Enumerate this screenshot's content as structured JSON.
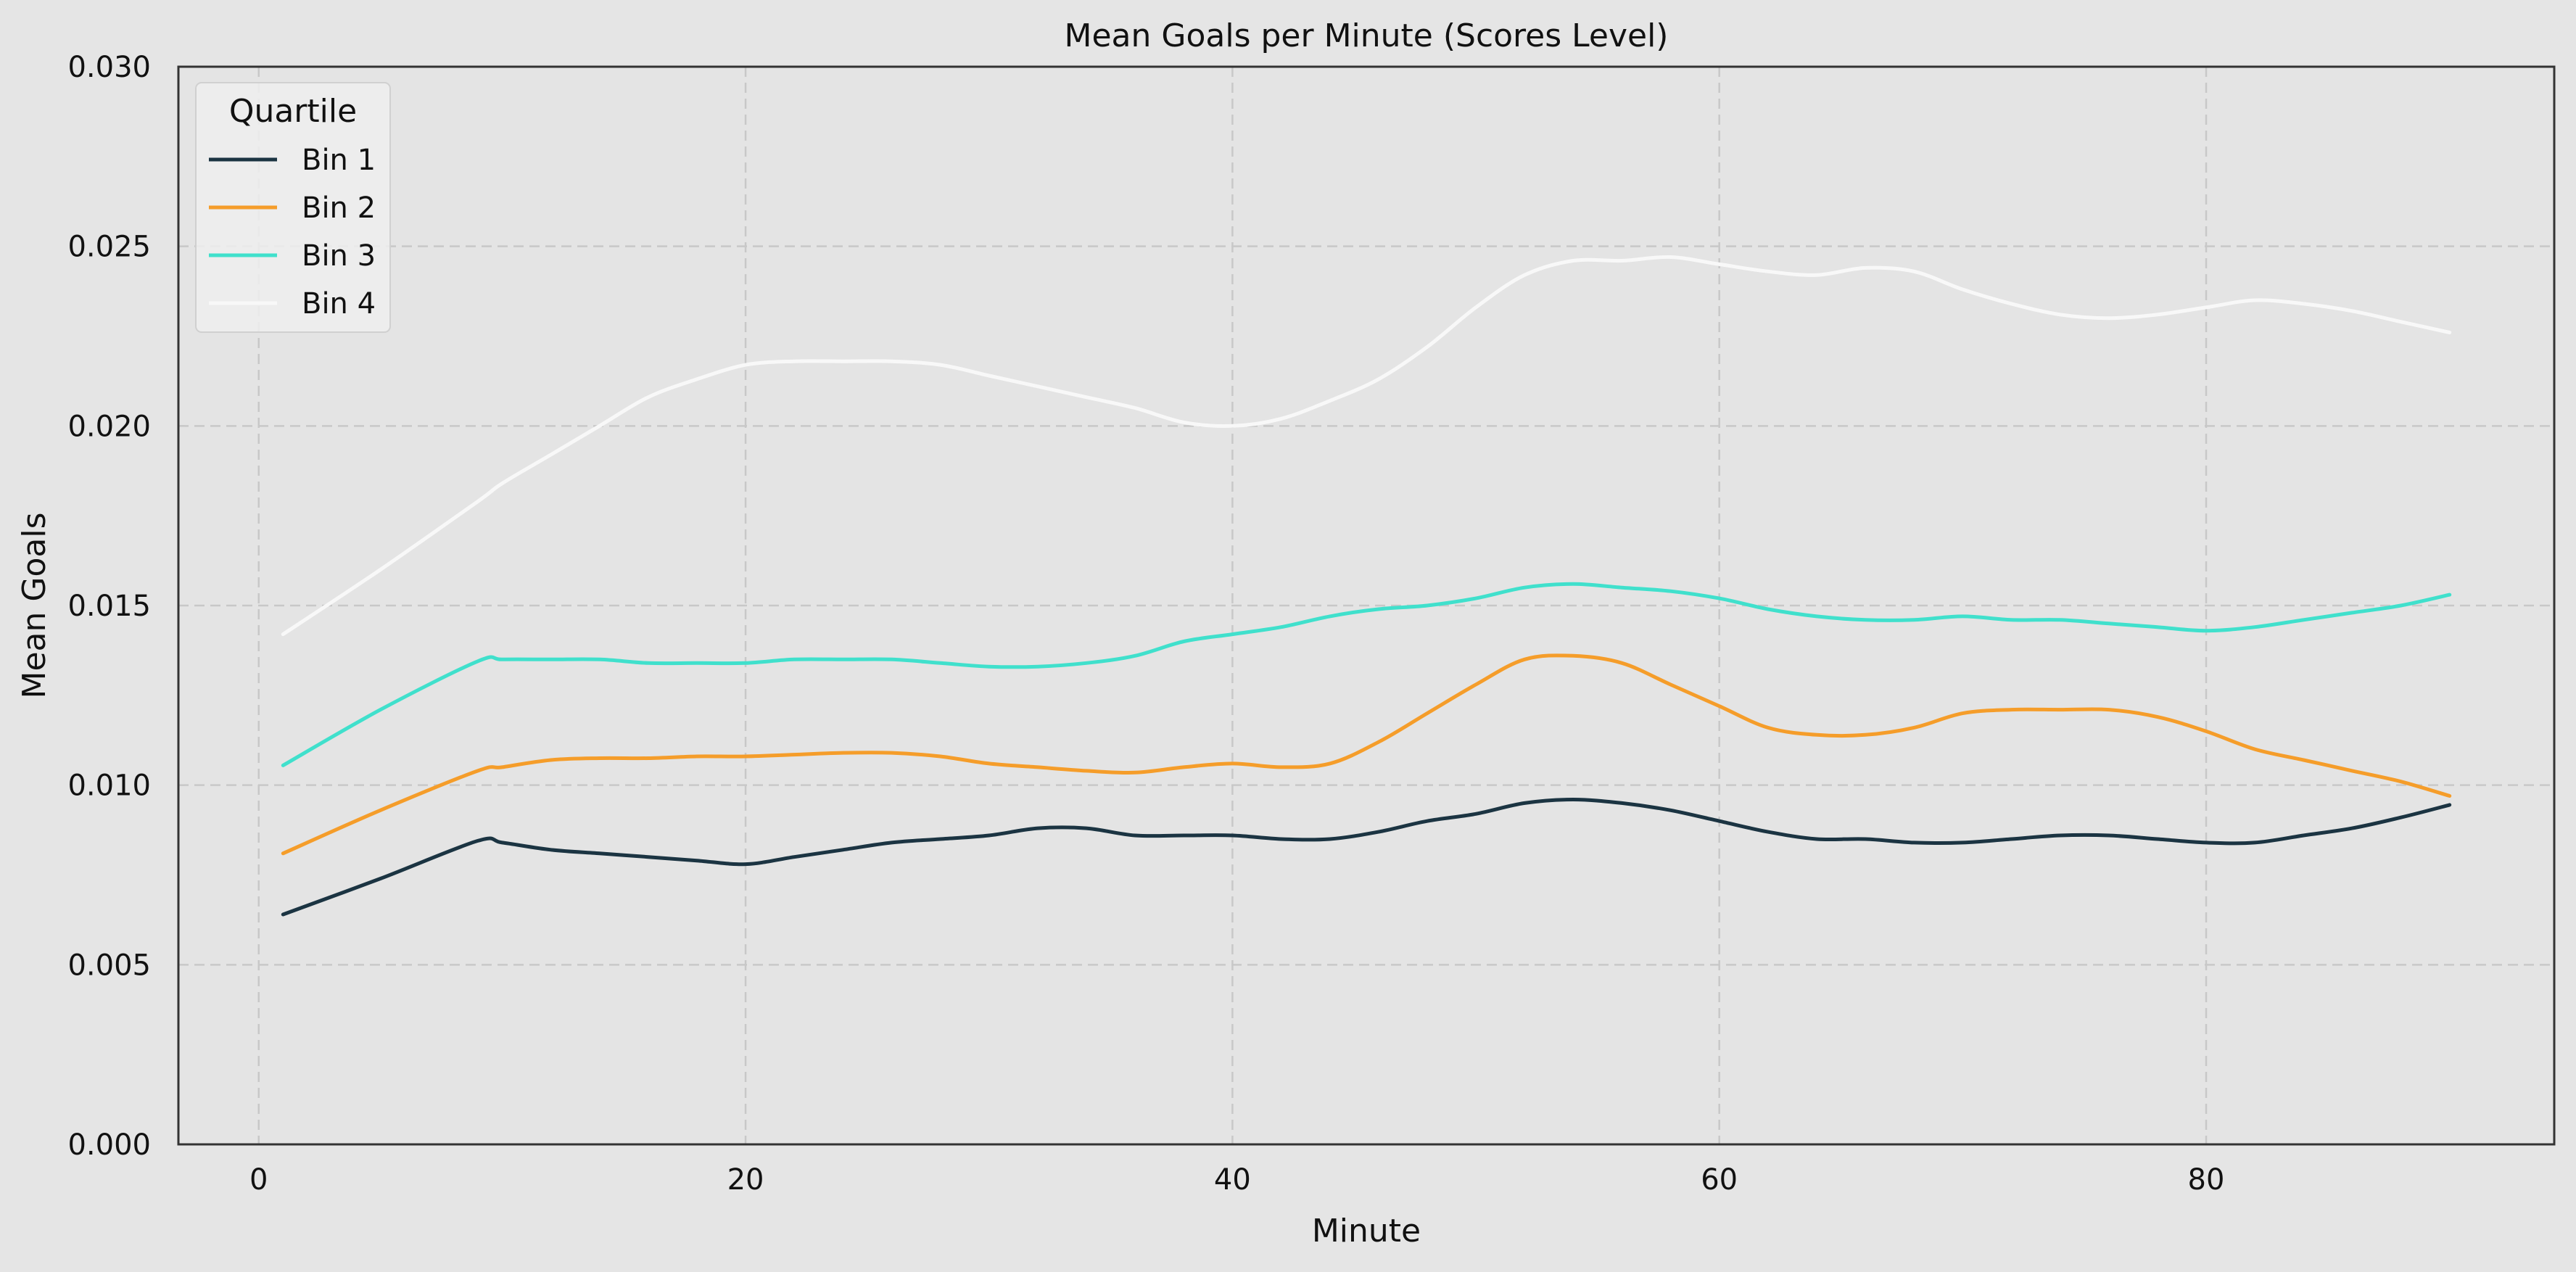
{
  "chart_data": {
    "type": "line",
    "title": "Mean Goals per Minute (Scores Level)",
    "xlabel": "Minute",
    "ylabel": "Mean Goals",
    "xlim": [
      -3.3,
      94.3
    ],
    "ylim": [
      0.0,
      0.03
    ],
    "xticks": [
      0,
      20,
      40,
      60,
      80
    ],
    "xtick_labels": [
      "0",
      "20",
      "40",
      "60",
      "80"
    ],
    "yticks": [
      0.0,
      0.005,
      0.01,
      0.015,
      0.02,
      0.025,
      0.03
    ],
    "ytick_labels": [
      "0.000",
      "0.005",
      "0.010",
      "0.015",
      "0.020",
      "0.025",
      "0.030"
    ],
    "grid": true,
    "legend": {
      "title": "Quartile",
      "position": "top-left"
    },
    "x": [
      1,
      5,
      9,
      10,
      12,
      14,
      16,
      18,
      20,
      22,
      24,
      26,
      28,
      30,
      32,
      34,
      36,
      38,
      40,
      42,
      44,
      46,
      48,
      50,
      52,
      54,
      56,
      58,
      60,
      62,
      64,
      66,
      68,
      70,
      72,
      74,
      76,
      78,
      80,
      82,
      84,
      86,
      88,
      90
    ],
    "series": [
      {
        "name": "Bin 1",
        "color": "#1b3442",
        "values": [
          0.0064,
          0.0074,
          0.00845,
          0.0084,
          0.0082,
          0.0081,
          0.008,
          0.0079,
          0.0078,
          0.008,
          0.0082,
          0.0084,
          0.0085,
          0.0086,
          0.0088,
          0.0088,
          0.0086,
          0.0086,
          0.0086,
          0.0085,
          0.0085,
          0.0087,
          0.009,
          0.0092,
          0.0095,
          0.0096,
          0.0095,
          0.0093,
          0.009,
          0.0087,
          0.0085,
          0.0085,
          0.0084,
          0.0084,
          0.0085,
          0.0086,
          0.0086,
          0.0085,
          0.0084,
          0.0084,
          0.0086,
          0.0088,
          0.0091,
          0.00945
        ]
      },
      {
        "name": "Bin 2",
        "color": "#f59d2a",
        "values": [
          0.0081,
          0.0093,
          0.0104,
          0.0105,
          0.0107,
          0.01075,
          0.01075,
          0.0108,
          0.0108,
          0.01085,
          0.0109,
          0.0109,
          0.0108,
          0.0106,
          0.0105,
          0.0104,
          0.01035,
          0.0105,
          0.0106,
          0.0105,
          0.0106,
          0.0112,
          0.012,
          0.0128,
          0.0135,
          0.0136,
          0.0134,
          0.0128,
          0.0122,
          0.0116,
          0.0114,
          0.0114,
          0.0116,
          0.012,
          0.0121,
          0.0121,
          0.0121,
          0.0119,
          0.0115,
          0.011,
          0.0107,
          0.0104,
          0.0101,
          0.0097
        ]
      },
      {
        "name": "Bin 3",
        "color": "#40e0cc",
        "values": [
          0.01055,
          0.0121,
          0.01345,
          0.0135,
          0.0135,
          0.0135,
          0.0134,
          0.0134,
          0.0134,
          0.0135,
          0.0135,
          0.0135,
          0.0134,
          0.0133,
          0.0133,
          0.0134,
          0.0136,
          0.014,
          0.0142,
          0.0144,
          0.0147,
          0.0149,
          0.015,
          0.0152,
          0.0155,
          0.0156,
          0.0155,
          0.0154,
          0.0152,
          0.0149,
          0.0147,
          0.0146,
          0.0146,
          0.0147,
          0.0146,
          0.0146,
          0.0145,
          0.0144,
          0.0143,
          0.0144,
          0.0146,
          0.0148,
          0.015,
          0.0153
        ]
      },
      {
        "name": "Bin 4",
        "color": "#f8f8f8",
        "values": [
          0.0142,
          0.016,
          0.0179,
          0.0184,
          0.0192,
          0.02,
          0.0208,
          0.0213,
          0.0217,
          0.0218,
          0.0218,
          0.0218,
          0.0217,
          0.0214,
          0.0211,
          0.0208,
          0.0205,
          0.0201,
          0.02,
          0.0202,
          0.0207,
          0.0213,
          0.0222,
          0.0233,
          0.0242,
          0.0246,
          0.0246,
          0.0247,
          0.0245,
          0.0243,
          0.0242,
          0.0244,
          0.0243,
          0.0238,
          0.0234,
          0.0231,
          0.023,
          0.0231,
          0.0233,
          0.0235,
          0.0234,
          0.0232,
          0.0229,
          0.0226
        ]
      }
    ]
  }
}
